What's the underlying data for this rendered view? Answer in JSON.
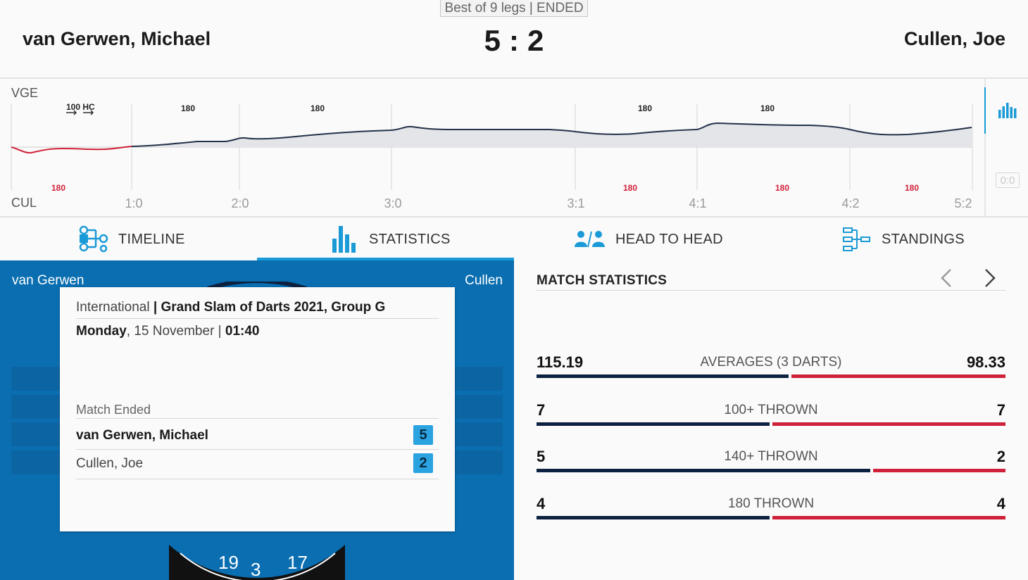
{
  "header": {
    "format": "Best of 9 legs | ENDED",
    "home_name": "van Gerwen, Michael",
    "away_name": "Cullen, Joe",
    "home_score": "5",
    "away_score": "2",
    "separator": ":"
  },
  "timeline": {
    "home_code": "VGE",
    "away_code": "CUL",
    "home_badges": [
      "100 HC",
      "180",
      "180",
      "180",
      "180"
    ],
    "away_badges": [
      "180",
      "180",
      "180",
      "180"
    ],
    "leg_scores": [
      "1:0",
      "2:0",
      "3:0",
      "3:1",
      "4:1",
      "4:2",
      "5:2"
    ],
    "toggle_label": "0:0",
    "chart_icon": "bar-chart-icon"
  },
  "tabs": [
    {
      "label": "TIMELINE",
      "icon": "timeline-icon"
    },
    {
      "label": "STATISTICS",
      "icon": "statistics-icon"
    },
    {
      "label": "HEAD TO HEAD",
      "icon": "head-to-head-icon"
    },
    {
      "label": "STANDINGS",
      "icon": "standings-icon"
    }
  ],
  "left_panel": {
    "home_short": "van Gerwen",
    "away_short": "Cullen",
    "dartboard_numbers": [
      "19",
      "3",
      "17"
    ]
  },
  "info_card": {
    "category": "International",
    "separator": " | ",
    "tournament": "Grand Slam of Darts 2021, Group G",
    "day": "Monday",
    "date": ", 15 November | ",
    "time": "01:40",
    "status": "Match Ended",
    "home_name": "van Gerwen, Michael",
    "home_score": "5",
    "away_name": "Cullen, Joe",
    "away_score": "2"
  },
  "match_stats": {
    "title": "MATCH STATISTICS",
    "rows": [
      {
        "label": "AVERAGES (3 DARTS)",
        "home": "115.19",
        "away": "98.33",
        "home_share": 0.54
      },
      {
        "label": "100+ THROWN",
        "home": "7",
        "away": "7",
        "home_share": 0.5
      },
      {
        "label": "140+ THROWN",
        "home": "5",
        "away": "2",
        "home_share": 0.714
      },
      {
        "label": "180 THROWN",
        "home": "4",
        "away": "4",
        "home_share": 0.5
      }
    ]
  },
  "colors": {
    "accent": "#1a9ad6",
    "home_bar": "#0d2240",
    "away_bar": "#d0213a",
    "panel_blue": "#0a6eb1"
  }
}
